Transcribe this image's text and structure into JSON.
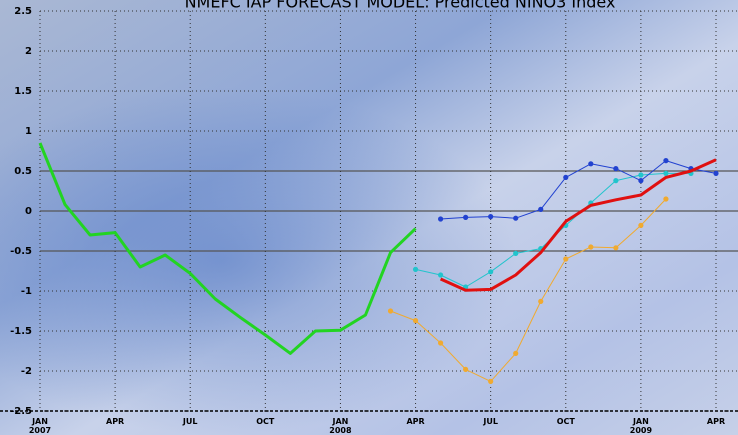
{
  "chart_data": {
    "type": "line",
    "title": "NMEFC IAP FORECAST MODEL: Predicted NINO3 Index",
    "x": [
      "2007-01",
      "2007-02",
      "2007-03",
      "2007-04",
      "2007-05",
      "2007-06",
      "2007-07",
      "2007-08",
      "2007-09",
      "2007-10",
      "2007-11",
      "2007-12",
      "2008-01",
      "2008-02",
      "2008-03",
      "2008-04",
      "2008-05",
      "2008-06",
      "2008-07",
      "2008-08",
      "2008-09",
      "2008-10",
      "2008-11",
      "2008-12",
      "2009-01",
      "2009-02",
      "2009-03",
      "2009-04"
    ],
    "xlim": [
      "2007-01",
      "2009-04"
    ],
    "xticks": [
      {
        "value": "2007-01",
        "label": "JAN 2007"
      },
      {
        "value": "2007-04",
        "label": "APR"
      },
      {
        "value": "2007-07",
        "label": "JUL"
      },
      {
        "value": "2007-10",
        "label": "OCT"
      },
      {
        "value": "2008-01",
        "label": "JAN 2008"
      },
      {
        "value": "2008-04",
        "label": "APR"
      },
      {
        "value": "2008-07",
        "label": "JUL"
      },
      {
        "value": "2008-10",
        "label": "OCT"
      },
      {
        "value": "2009-01",
        "label": "JAN 2009"
      },
      {
        "value": "2009-04",
        "label": "APR"
      }
    ],
    "ylim": [
      -2.5,
      2.5
    ],
    "yticks": [
      -2.5,
      -2,
      -1.5,
      -1,
      -0.5,
      0,
      0.5,
      1,
      1.5,
      2,
      2.5
    ],
    "reference_lines": [
      -0.5,
      0,
      0.5
    ],
    "grid": true,
    "series": [
      {
        "color": "#22d422",
        "width": 3,
        "markers": false,
        "values": [
          0.85,
          0.08,
          -0.3,
          -0.27,
          -0.7,
          -0.55,
          -0.78,
          -1.1,
          -1.33,
          -1.55,
          -1.78,
          -1.5,
          -1.49,
          -1.3,
          -0.52,
          -0.22,
          null,
          null,
          null,
          null,
          null,
          null,
          null,
          null,
          null,
          null,
          null,
          null
        ]
      },
      {
        "color": "#f0aa30",
        "width": 1,
        "markers": true,
        "values": [
          null,
          null,
          null,
          null,
          null,
          null,
          null,
          null,
          null,
          null,
          null,
          null,
          null,
          null,
          -1.25,
          -1.37,
          -1.65,
          -1.98,
          -2.13,
          -1.78,
          -1.13,
          -0.6,
          -0.45,
          -0.46,
          -0.18,
          0.15,
          null,
          null
        ]
      },
      {
        "color": "#22c4cc",
        "width": 1,
        "markers": true,
        "values": [
          null,
          null,
          null,
          null,
          null,
          null,
          null,
          null,
          null,
          null,
          null,
          null,
          null,
          null,
          null,
          -0.73,
          -0.8,
          -0.95,
          -0.76,
          -0.53,
          -0.47,
          -0.18,
          0.1,
          0.38,
          0.45,
          0.47,
          0.47,
          null
        ]
      },
      {
        "color": "#2242d0",
        "width": 1,
        "markers": true,
        "values": [
          null,
          null,
          null,
          null,
          null,
          null,
          null,
          null,
          null,
          null,
          null,
          null,
          null,
          null,
          null,
          null,
          -0.1,
          -0.08,
          -0.07,
          -0.09,
          0.02,
          0.42,
          0.59,
          0.53,
          0.38,
          0.63,
          0.53,
          0.47
        ]
      },
      {
        "color": "#e01010",
        "width": 3,
        "markers": false,
        "values": [
          null,
          null,
          null,
          null,
          null,
          null,
          null,
          null,
          null,
          null,
          null,
          null,
          null,
          null,
          null,
          null,
          -0.85,
          -0.99,
          -0.98,
          -0.8,
          -0.52,
          -0.13,
          0.07,
          0.14,
          0.2,
          0.42,
          0.5,
          0.64
        ]
      }
    ]
  }
}
